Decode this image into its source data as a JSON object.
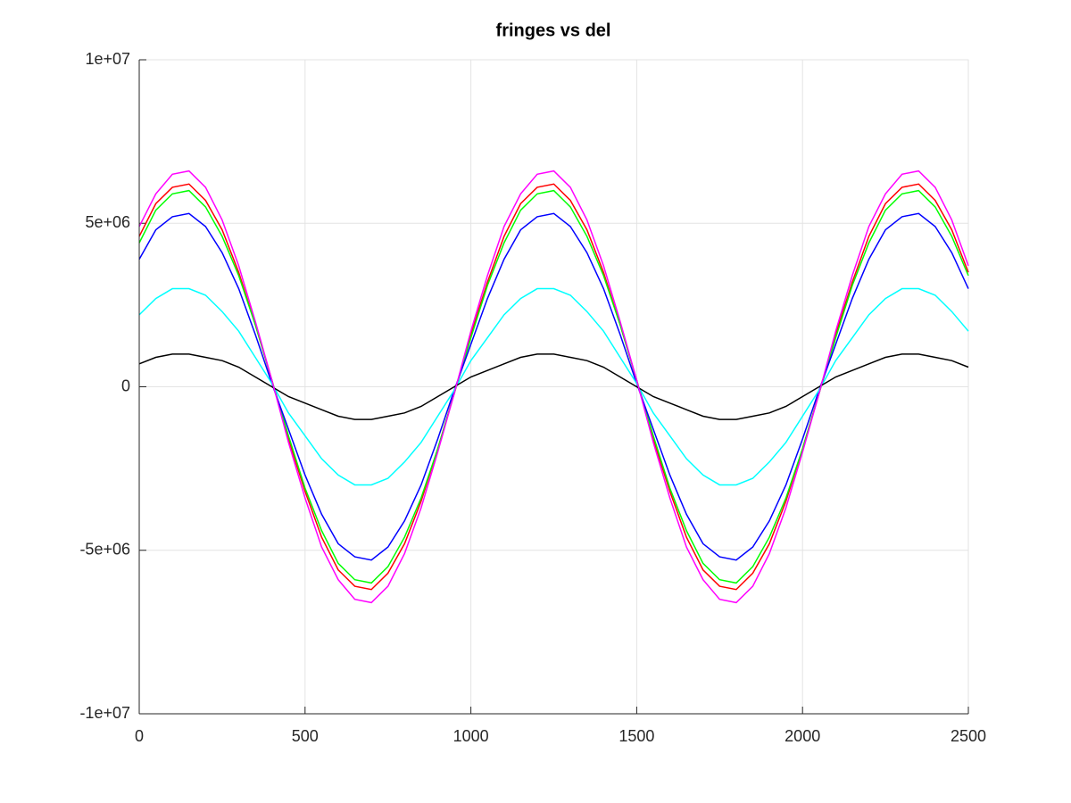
{
  "chart_data": {
    "type": "line",
    "title": "fringes vs del",
    "x": [
      0,
      50,
      100,
      150,
      200,
      250,
      300,
      350,
      400,
      450,
      500,
      550,
      600,
      650,
      700,
      750,
      800,
      850,
      900,
      950,
      1000,
      1050,
      1100,
      1150,
      1200,
      1250,
      1300,
      1350,
      1400,
      1450,
      1500,
      1550,
      1600,
      1650,
      1700,
      1750,
      1800,
      1850,
      1900,
      1950,
      2000,
      2050,
      2100,
      2150,
      2200,
      2250,
      2300,
      2350,
      2400,
      2450,
      2500
    ],
    "series": [
      {
        "color": "#ff0000",
        "values": [
          4600000.0,
          5600000.0,
          6100000.0,
          6200000.0,
          5700000.0,
          4800000.0,
          3500000.0,
          1900000.0,
          200000.0,
          -1600000.0,
          -3200000.0,
          -4600000.0,
          -5600000.0,
          -6100000.0,
          -6200000.0,
          -5700000.0,
          -4800000.0,
          -3500000.0,
          -1900000.0,
          -200000.0,
          1600000.0,
          3200000.0,
          4600000.0,
          5600000.0,
          6100000.0,
          6200000.0,
          5700000.0,
          4800000.0,
          3500000.0,
          1900000.0,
          200000.0,
          -1600000.0,
          -3200000.0,
          -4600000.0,
          -5600000.0,
          -6100000.0,
          -6200000.0,
          -5700000.0,
          -4800000.0,
          -3500000.0,
          -1900000.0,
          -200000.0,
          1600000.0,
          3200000.0,
          4600000.0,
          5600000.0,
          6100000.0,
          6200000.0,
          5700000.0,
          4800000.0,
          3500000.0
        ]
      },
      {
        "color": "#00ff00",
        "values": [
          4400000.0,
          5400000.0,
          5900000.0,
          6000000.0,
          5500000.0,
          4600000.0,
          3400000.0,
          1900000.0,
          200000.0,
          -1500000.0,
          -3100000.0,
          -4400000.0,
          -5400000.0,
          -5900000.0,
          -6000000.0,
          -5500000.0,
          -4600000.0,
          -3400000.0,
          -1900000.0,
          -200000.0,
          1500000.0,
          3100000.0,
          4400000.0,
          5400000.0,
          5900000.0,
          6000000.0,
          5500000.0,
          4600000.0,
          3400000.0,
          1900000.0,
          200000.0,
          -1500000.0,
          -3100000.0,
          -4400000.0,
          -5400000.0,
          -5900000.0,
          -6000000.0,
          -5500000.0,
          -4600000.0,
          -3400000.0,
          -1900000.0,
          -200000.0,
          1500000.0,
          3100000.0,
          4400000.0,
          5400000.0,
          5900000.0,
          6000000.0,
          5500000.0,
          4600000.0,
          3400000.0
        ]
      },
      {
        "color": "#0000ff",
        "values": [
          3900000.0,
          4800000.0,
          5200000.0,
          5300000.0,
          4900000.0,
          4100000.0,
          3000000.0,
          1600000.0,
          100000.0,
          -1300000.0,
          -2700000.0,
          -3900000.0,
          -4800000.0,
          -5200000.0,
          -5300000.0,
          -4900000.0,
          -4100000.0,
          -3000000.0,
          -1600000.0,
          -100000.0,
          1300000.0,
          2700000.0,
          3900000.0,
          4800000.0,
          5200000.0,
          5300000.0,
          4900000.0,
          4100000.0,
          3000000.0,
          1600000.0,
          100000.0,
          -1300000.0,
          -2700000.0,
          -3900000.0,
          -4800000.0,
          -5200000.0,
          -5300000.0,
          -4900000.0,
          -4100000.0,
          -3000000.0,
          -1600000.0,
          -100000.0,
          1300000.0,
          2700000.0,
          3900000.0,
          4800000.0,
          5200000.0,
          5300000.0,
          4900000.0,
          4100000.0,
          3000000.0
        ]
      },
      {
        "color": "#00ffff",
        "values": [
          2200000.0,
          2700000.0,
          3000000.0,
          3000000.0,
          2800000.0,
          2300000.0,
          1700000.0,
          900000.0,
          100000.0,
          -800000.0,
          -1500000.0,
          -2200000.0,
          -2700000.0,
          -3000000.0,
          -3000000.0,
          -2800000.0,
          -2300000.0,
          -1700000.0,
          -900000.0,
          -100000.0,
          800000.0,
          1500000.0,
          2200000.0,
          2700000.0,
          3000000.0,
          3000000.0,
          2800000.0,
          2300000.0,
          1700000.0,
          900000.0,
          100000.0,
          -800000.0,
          -1500000.0,
          -2200000.0,
          -2700000.0,
          -3000000.0,
          -3000000.0,
          -2800000.0,
          -2300000.0,
          -1700000.0,
          -900000.0,
          -100000.0,
          800000.0,
          1500000.0,
          2200000.0,
          2700000.0,
          3000000.0,
          3000000.0,
          2800000.0,
          2300000.0,
          1700000.0
        ]
      },
      {
        "color": "#000000",
        "values": [
          700000.0,
          900000.0,
          1000000.0,
          1000000.0,
          900000.0,
          800000.0,
          600000.0,
          300000.0,
          0,
          -300000.0,
          -500000.0,
          -700000.0,
          -900000.0,
          -1000000.0,
          -1000000.0,
          -900000.0,
          -800000.0,
          -600000.0,
          -300000.0,
          0,
          300000.0,
          500000.0,
          700000.0,
          900000.0,
          1000000.0,
          1000000.0,
          900000.0,
          800000.0,
          600000.0,
          300000.0,
          0,
          -300000.0,
          -500000.0,
          -700000.0,
          -900000.0,
          -1000000.0,
          -1000000.0,
          -900000.0,
          -800000.0,
          -600000.0,
          -300000.0,
          0,
          300000.0,
          500000.0,
          700000.0,
          900000.0,
          1000000.0,
          1000000.0,
          900000.0,
          800000.0,
          600000.0
        ]
      },
      {
        "color": "#ff00ff",
        "values": [
          4900000.0,
          5900000.0,
          6500000.0,
          6600000.0,
          6100000.0,
          5100000.0,
          3700000.0,
          2000000.0,
          200000.0,
          -1700000.0,
          -3400000.0,
          -4900000.0,
          -5900000.0,
          -6500000.0,
          -6600000.0,
          -6100000.0,
          -5100000.0,
          -3700000.0,
          -2000000.0,
          -200000.0,
          1700000.0,
          3400000.0,
          4900000.0,
          5900000.0,
          6500000.0,
          6600000.0,
          6100000.0,
          5100000.0,
          3700000.0,
          2000000.0,
          200000.0,
          -1700000.0,
          -3400000.0,
          -4900000.0,
          -5900000.0,
          -6500000.0,
          -6600000.0,
          -6100000.0,
          -5100000.0,
          -3700000.0,
          -2000000.0,
          -200000.0,
          1700000.0,
          3400000.0,
          4900000.0,
          5900000.0,
          6500000.0,
          6600000.0,
          6100000.0,
          5100000.0,
          3700000.0
        ]
      }
    ],
    "xlim": [
      0,
      2500
    ],
    "xticks": [
      0,
      500,
      1000,
      1500,
      2000,
      2500
    ],
    "ylim": [
      -10000000,
      10000000
    ],
    "yticks": [
      {
        "value": -10000000,
        "label": "-1e+07"
      },
      {
        "value": -5000000,
        "label": "-5e+06"
      },
      0,
      {
        "value": 5000000,
        "label": "5e+06"
      },
      {
        "value": 10000000,
        "label": "1e+07"
      }
    ],
    "grid": true
  }
}
